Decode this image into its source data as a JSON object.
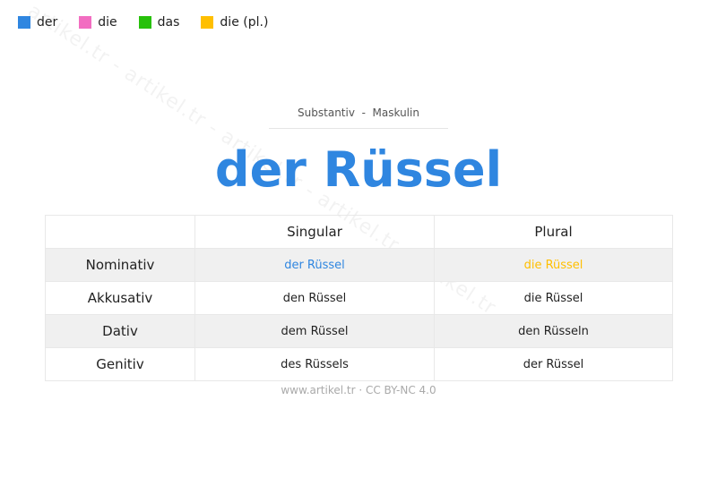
{
  "legend": [
    {
      "label": "der",
      "color": "#2f86e0"
    },
    {
      "label": "die",
      "color": "#f26dc1"
    },
    {
      "label": "das",
      "color": "#27c10b"
    },
    {
      "label": "die (pl.)",
      "color": "#ffbf00"
    }
  ],
  "watermark": "artikel.tr - artikel.tr - artikel.tr - artikel.tr - artikel.tr",
  "subtitle": "Substantiv  -  Maskulin",
  "title": "der Rüssel",
  "table": {
    "headers": [
      "",
      "Singular",
      "Plural"
    ],
    "rows": [
      {
        "case": "Nominativ",
        "singular": "der Rüssel",
        "plural": "die Rüssel"
      },
      {
        "case": "Akkusativ",
        "singular": "den Rüssel",
        "plural": "die Rüssel"
      },
      {
        "case": "Dativ",
        "singular": "dem Rüssel",
        "plural": "den Rüsseln"
      },
      {
        "case": "Genitiv",
        "singular": "des Rüssels",
        "plural": "der Rüssel"
      }
    ]
  },
  "footer": "www.artikel.tr · CC BY-NC 4.0"
}
